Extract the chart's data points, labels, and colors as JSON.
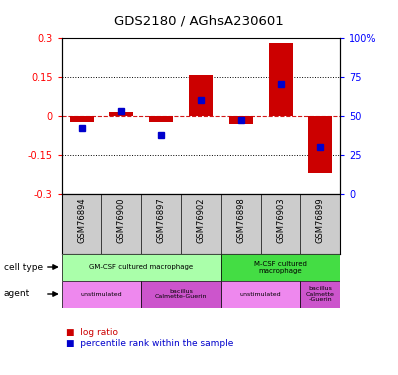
{
  "title": "GDS2180 / AGhsA230601",
  "samples": [
    "GSM76894",
    "GSM76900",
    "GSM76897",
    "GSM76902",
    "GSM76898",
    "GSM76903",
    "GSM76899"
  ],
  "log_ratios": [
    -0.025,
    0.015,
    -0.025,
    0.155,
    -0.03,
    0.28,
    -0.22
  ],
  "percentile_ranks": [
    42,
    53,
    38,
    60,
    47,
    70,
    30
  ],
  "ylim_left": [
    -0.3,
    0.3
  ],
  "ylim_right": [
    0,
    100
  ],
  "yticks_left": [
    -0.3,
    -0.15,
    0,
    0.15,
    0.3
  ],
  "ytick_labels_left": [
    "-0.3",
    "-0.15",
    "0",
    "0.15",
    "0.3"
  ],
  "yticks_right": [
    0,
    25,
    50,
    75,
    100
  ],
  "ytick_labels_right": [
    "0",
    "25",
    "50",
    "75",
    "100%"
  ],
  "bar_color": "#cc0000",
  "dot_color": "#0000cc",
  "hline_color": "#cc0000",
  "dotted_color": "#000000",
  "cell_type_groups": [
    {
      "label": "GM-CSF cultured macrophage",
      "start": 0,
      "end": 3,
      "color": "#aaffaa"
    },
    {
      "label": "M-CSF cultured\nmacrophage",
      "start": 4,
      "end": 6,
      "color": "#44dd44"
    }
  ],
  "agent_groups": [
    {
      "label": "unstimulated",
      "start": 0,
      "end": 1,
      "color": "#ee88ee"
    },
    {
      "label": "bacillus\nCalmette-Guerin",
      "start": 2,
      "end": 3,
      "color": "#cc55cc"
    },
    {
      "label": "unstimulated",
      "start": 4,
      "end": 5,
      "color": "#ee88ee"
    },
    {
      "label": "bacillus\nCalmette\n-Guerin",
      "start": 6,
      "end": 6,
      "color": "#cc55cc"
    }
  ],
  "legend_bar_color": "#cc0000",
  "legend_dot_color": "#0000cc",
  "legend_bar_label": "log ratio",
  "legend_dot_label": "percentile rank within the sample",
  "background_color": "#ffffff",
  "sample_area_color": "#cccccc"
}
